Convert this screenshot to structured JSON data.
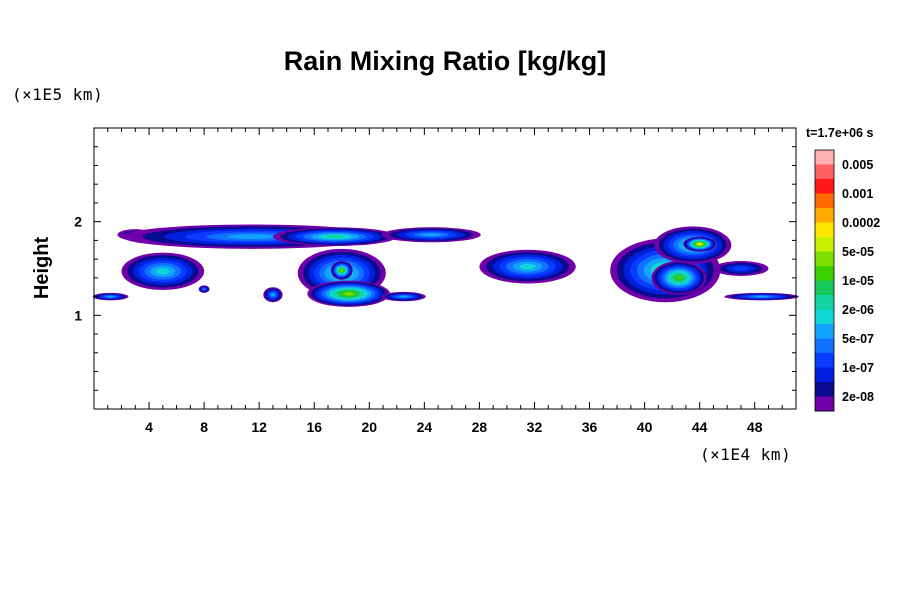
{
  "chart_data": {
    "type": "heatmap",
    "title": "Rain Mixing Ratio [kg/kg]",
    "ylabel": "Height",
    "y_scale_label": "(×1E5 km)",
    "x_scale_label": "(×1E4 km)",
    "time_label": "t=1.7e+06 s",
    "xlim": [
      0,
      51
    ],
    "ylim": [
      0,
      3
    ],
    "xticks": [
      4,
      8,
      12,
      16,
      20,
      24,
      28,
      32,
      36,
      40,
      44,
      48
    ],
    "yticks": [
      1,
      2
    ],
    "colorbar": {
      "labels": [
        "0.005",
        "0.001",
        "0.0002",
        "5e-05",
        "1e-05",
        "2e-06",
        "5e-07",
        "1e-07",
        "2e-08"
      ],
      "colors": [
        "#ffb0b0",
        "#ff6060",
        "#ff1818",
        "#ff6a00",
        "#ffaa00",
        "#ffe600",
        "#c8f000",
        "#7ce000",
        "#3cd000",
        "#18c85a",
        "#12d4a0",
        "#10d6d6",
        "#10a4ff",
        "#1070ff",
        "#0a3cff",
        "#0020e0",
        "#0a0a90",
        "#7000a8"
      ]
    },
    "regions": [
      {
        "cx": 3.0,
        "cy": 1.86,
        "rx": 1.3,
        "ry": 0.06,
        "level": 2
      },
      {
        "cx": 11.5,
        "cy": 1.84,
        "rx": 9.5,
        "ry": 0.13,
        "level": 5
      },
      {
        "cx": 17.5,
        "cy": 1.84,
        "rx": 4.5,
        "ry": 0.1,
        "level": 7
      },
      {
        "cx": 24.5,
        "cy": 1.86,
        "rx": 3.6,
        "ry": 0.08,
        "level": 5
      },
      {
        "cx": 5.0,
        "cy": 1.47,
        "rx": 3.0,
        "ry": 0.2,
        "level": 6
      },
      {
        "cx": 18.0,
        "cy": 1.45,
        "rx": 3.2,
        "ry": 0.26,
        "level": 7
      },
      {
        "cx": 18.5,
        "cy": 1.23,
        "rx": 3.0,
        "ry": 0.14,
        "level": 10
      },
      {
        "cx": 18.0,
        "cy": 1.48,
        "rx": 0.8,
        "ry": 0.1,
        "level": 10
      },
      {
        "cx": 13.0,
        "cy": 1.22,
        "rx": 0.7,
        "ry": 0.08,
        "level": 5
      },
      {
        "cx": 8.0,
        "cy": 1.28,
        "rx": 0.4,
        "ry": 0.04,
        "level": 4
      },
      {
        "cx": 22.5,
        "cy": 1.2,
        "rx": 1.6,
        "ry": 0.05,
        "level": 5
      },
      {
        "cx": 1.2,
        "cy": 1.2,
        "rx": 1.3,
        "ry": 0.04,
        "level": 5
      },
      {
        "cx": 31.5,
        "cy": 1.52,
        "rx": 3.5,
        "ry": 0.18,
        "level": 6
      },
      {
        "cx": 41.5,
        "cy": 1.48,
        "rx": 4.0,
        "ry": 0.34,
        "level": 7
      },
      {
        "cx": 43.5,
        "cy": 1.75,
        "rx": 2.8,
        "ry": 0.2,
        "level": 7
      },
      {
        "cx": 44.0,
        "cy": 1.76,
        "rx": 1.2,
        "ry": 0.08,
        "level": 12
      },
      {
        "cx": 42.5,
        "cy": 1.4,
        "rx": 2.0,
        "ry": 0.18,
        "level": 9
      },
      {
        "cx": 48.5,
        "cy": 1.2,
        "rx": 2.7,
        "ry": 0.04,
        "level": 5
      },
      {
        "cx": 47.0,
        "cy": 1.5,
        "rx": 2.0,
        "ry": 0.08,
        "level": 3
      }
    ]
  }
}
